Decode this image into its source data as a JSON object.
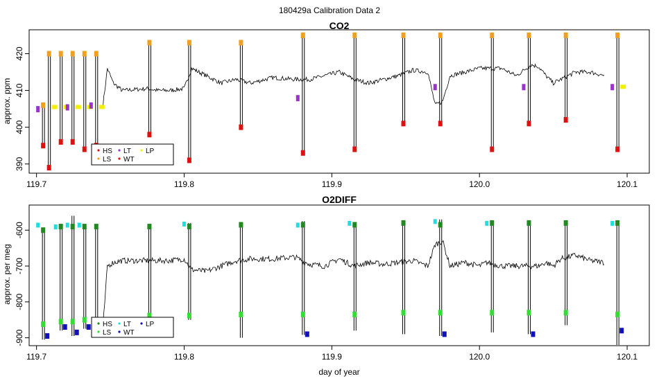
{
  "figure": {
    "main_title": "180429a   Calibration Data 2"
  },
  "colors": {
    "HS": "#dd1111",
    "LS": "#f0a020",
    "LT": "#9933cc",
    "WT": "#dd1111",
    "LP": "#f2f000",
    "trace": "#000000"
  },
  "colors_o2": {
    "HS": "#228822",
    "LS": "#33dd33",
    "LT": "#22dddd",
    "WT": "#1111bb",
    "LP": "#1111bb",
    "trace": "#000000"
  },
  "chart_data": [
    {
      "type": "line",
      "title": "CO2",
      "xlabel": "",
      "ylabel": "approx. ppm",
      "xlim": [
        119.695,
        120.115
      ],
      "ylim": [
        387.5,
        426.5
      ],
      "xticks": [
        119.7,
        119.8,
        119.9,
        120.0,
        120.1
      ],
      "xtick_labels": [
        "119.7",
        "119.8",
        "119.9",
        "120.0",
        "120.1"
      ],
      "yticks": [
        390,
        400,
        410,
        420
      ],
      "ytick_labels": [
        "390",
        "400",
        "410",
        "420"
      ],
      "legend": {
        "position": "bottom-left",
        "entries": [
          "HS",
          "LS",
          "LT",
          "WT",
          "LP"
        ]
      },
      "baseline": {
        "x": [
          119.745,
          119.748,
          119.752,
          119.758,
          119.775,
          119.782,
          119.79,
          119.8,
          119.805,
          119.815,
          119.825,
          119.835,
          119.845,
          119.86,
          119.875,
          119.885,
          119.895,
          119.905,
          119.915,
          119.925,
          119.935,
          119.945,
          119.955,
          119.965,
          119.97,
          119.975,
          119.98,
          119.99,
          120.0,
          120.005,
          120.015,
          120.025,
          120.035,
          120.04,
          120.045,
          120.05,
          120.055,
          120.065,
          120.075,
          120.085
        ],
        "y": [
          406,
          416,
          412,
          410,
          410.5,
          410,
          410,
          410.5,
          416,
          414,
          412,
          413,
          412,
          413.5,
          413,
          413,
          414,
          415,
          413,
          412,
          413,
          414,
          415.5,
          415,
          406,
          407,
          414,
          415,
          416,
          416,
          416,
          414,
          417,
          416.5,
          414,
          412,
          413,
          415,
          415,
          414
        ]
      },
      "events": [
        {
          "x": 119.704,
          "min": 395,
          "max": 406,
          "lt": 405,
          "lp": null
        },
        {
          "x": 119.708,
          "min": 389,
          "max": 420,
          "lt": null,
          "lp": 405.5
        },
        {
          "x": 119.716,
          "min": 396,
          "max": 420,
          "lt": null,
          "lp": 405.5
        },
        {
          "x": 119.724,
          "min": 396,
          "max": 420,
          "lt": 405.5,
          "lp": 405.5
        },
        {
          "x": 119.732,
          "min": 394,
          "max": 420,
          "lt": null,
          "lp": 405.5
        },
        {
          "x": 119.74,
          "min": 395,
          "max": 420,
          "lt": 406,
          "lp": 405.5
        },
        {
          "x": 119.776,
          "min": 398,
          "max": 423,
          "lt": null,
          "lp": null
        },
        {
          "x": 119.803,
          "min": 391,
          "max": 423,
          "lt": null,
          "lp": null
        },
        {
          "x": 119.838,
          "min": 400,
          "max": 423,
          "lt": null,
          "lp": null
        },
        {
          "x": 119.88,
          "min": 393,
          "max": 425,
          "lt": 408,
          "lp": null
        },
        {
          "x": 119.915,
          "min": 394,
          "max": 425,
          "lt": null,
          "lp": null
        },
        {
          "x": 119.948,
          "min": 401,
          "max": 425,
          "lt": null,
          "lp": null
        },
        {
          "x": 119.973,
          "min": 401,
          "max": 425,
          "lt": 411,
          "lp": null
        },
        {
          "x": 120.008,
          "min": 394,
          "max": 425,
          "lt": null,
          "lp": null
        },
        {
          "x": 120.033,
          "min": 401,
          "max": 425,
          "lt": 411,
          "lp": null
        },
        {
          "x": 120.058,
          "min": 402,
          "max": 425,
          "lt": null,
          "lp": null
        },
        {
          "x": 120.093,
          "min": 394,
          "max": 425,
          "lt": 411,
          "lp": 411
        }
      ]
    },
    {
      "type": "line",
      "title": "O2DIFF",
      "xlabel": "day of year",
      "ylabel": "approx. per meg",
      "xlim": [
        119.695,
        120.115
      ],
      "ylim": [
        -922,
        -530
      ],
      "xticks": [
        119.7,
        119.8,
        119.9,
        120.0,
        120.1
      ],
      "xtick_labels": [
        "119.7",
        "119.8",
        "119.9",
        "120.0",
        "120.1"
      ],
      "yticks": [
        -900,
        -800,
        -700,
        -600
      ],
      "ytick_labels": [
        "-900",
        "-800",
        "-700",
        "-600"
      ],
      "legend": {
        "position": "bottom-left",
        "entries": [
          "HS",
          "LS",
          "LT",
          "WT",
          "LP"
        ]
      },
      "baseline": {
        "x": [
          119.745,
          119.748,
          119.752,
          119.758,
          119.775,
          119.782,
          119.79,
          119.8,
          119.805,
          119.815,
          119.825,
          119.835,
          119.845,
          119.86,
          119.875,
          119.885,
          119.895,
          119.905,
          119.915,
          119.925,
          119.935,
          119.945,
          119.955,
          119.965,
          119.97,
          119.975,
          119.98,
          119.99,
          120.0,
          120.005,
          120.015,
          120.025,
          120.035,
          120.04,
          120.045,
          120.05,
          120.055,
          120.065,
          120.075,
          120.085
        ],
        "y": [
          -870,
          -700,
          -690,
          -685,
          -685,
          -685,
          -685,
          -680,
          -710,
          -715,
          -700,
          -685,
          -680,
          -680,
          -675,
          -695,
          -700,
          -680,
          -700,
          -690,
          -695,
          -690,
          -685,
          -700,
          -640,
          -630,
          -700,
          -690,
          -700,
          -690,
          -700,
          -700,
          -700,
          -700,
          -690,
          -700,
          -680,
          -670,
          -685,
          -690
        ]
      },
      "events": [
        {
          "x": 119.704,
          "min": -905,
          "max": -595,
          "hs": -600,
          "ls": -862,
          "lt": -585,
          "wt": -895
        },
        {
          "x": 119.716,
          "min": -880,
          "max": -590,
          "hs": -590,
          "ls": -855,
          "lt": -590,
          "wt": -870
        },
        {
          "x": 119.724,
          "min": -895,
          "max": -560,
          "hs": -590,
          "ls": -855,
          "lt": -585,
          "wt": -885
        },
        {
          "x": 119.732,
          "min": -875,
          "max": -590,
          "hs": -590,
          "ls": -850,
          "lt": -585,
          "wt": -870
        },
        {
          "x": 119.74,
          "min": -880,
          "max": -585,
          "hs": -590,
          "ls": -860,
          "lt": null,
          "wt": -870
        },
        {
          "x": 119.776,
          "min": -845,
          "max": -590,
          "hs": -590,
          "ls": -838,
          "lt": null,
          "wt": null
        },
        {
          "x": 119.803,
          "min": -850,
          "max": -580,
          "hs": -590,
          "ls": -838,
          "lt": -582,
          "wt": null
        },
        {
          "x": 119.838,
          "min": -900,
          "max": -580,
          "hs": -585,
          "ls": -835,
          "lt": null,
          "wt": null
        },
        {
          "x": 119.88,
          "min": -892,
          "max": -575,
          "hs": -585,
          "ls": -835,
          "lt": -585,
          "wt": -890
        },
        {
          "x": 119.915,
          "min": -880,
          "max": -580,
          "hs": -585,
          "ls": -835,
          "lt": -580,
          "wt": null
        },
        {
          "x": 119.948,
          "min": -890,
          "max": -580,
          "hs": -580,
          "ls": -830,
          "lt": null,
          "wt": null
        },
        {
          "x": 119.973,
          "min": -895,
          "max": -570,
          "hs": -585,
          "ls": -830,
          "lt": -575,
          "wt": -890
        },
        {
          "x": 120.008,
          "min": -885,
          "max": -575,
          "hs": -580,
          "ls": -830,
          "lt": -580,
          "wt": null
        },
        {
          "x": 120.033,
          "min": -890,
          "max": -580,
          "hs": -580,
          "ls": -830,
          "lt": null,
          "wt": -890
        },
        {
          "x": 120.058,
          "min": -865,
          "max": -580,
          "hs": -580,
          "ls": -830,
          "lt": null,
          "wt": null
        },
        {
          "x": 120.093,
          "min": -920,
          "max": -575,
          "hs": -580,
          "ls": -835,
          "lt": -580,
          "wt": -880
        }
      ]
    }
  ]
}
